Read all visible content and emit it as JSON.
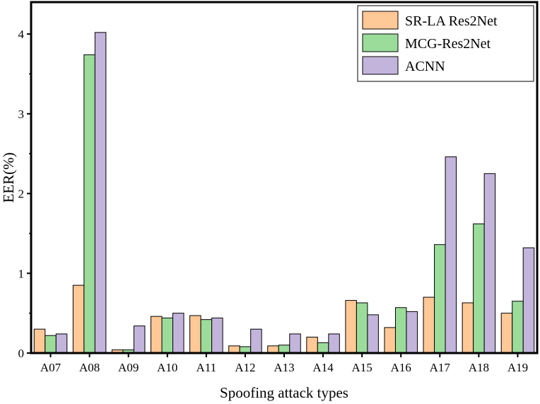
{
  "chart_data": {
    "type": "bar",
    "xlabel": "Spoofing attack types",
    "ylabel": "EER(%)",
    "ylim": [
      0,
      4.4
    ],
    "yticks": [
      0,
      1,
      2,
      3,
      4
    ],
    "grid": false,
    "legend_position": "top-right",
    "categories": [
      "A07",
      "A08",
      "A09",
      "A10",
      "A11",
      "A12",
      "A13",
      "A14",
      "A15",
      "A16",
      "A17",
      "A18",
      "A19"
    ],
    "series": [
      {
        "name": "SR-LA Res2Net",
        "color": "#FFC896",
        "values": [
          0.3,
          0.85,
          0.04,
          0.46,
          0.47,
          0.09,
          0.09,
          0.2,
          0.66,
          0.32,
          0.7,
          0.63,
          0.5
        ]
      },
      {
        "name": "MCG-Res2Net",
        "color": "#9BDC9B",
        "values": [
          0.22,
          3.74,
          0.04,
          0.44,
          0.42,
          0.08,
          0.1,
          0.13,
          0.63,
          0.57,
          1.36,
          1.62,
          0.65
        ]
      },
      {
        "name": "ACNN",
        "color": "#C3B4DC",
        "values": [
          0.24,
          4.02,
          0.34,
          0.5,
          0.44,
          0.3,
          0.24,
          0.24,
          0.48,
          0.52,
          2.46,
          2.25,
          1.32
        ]
      }
    ]
  }
}
